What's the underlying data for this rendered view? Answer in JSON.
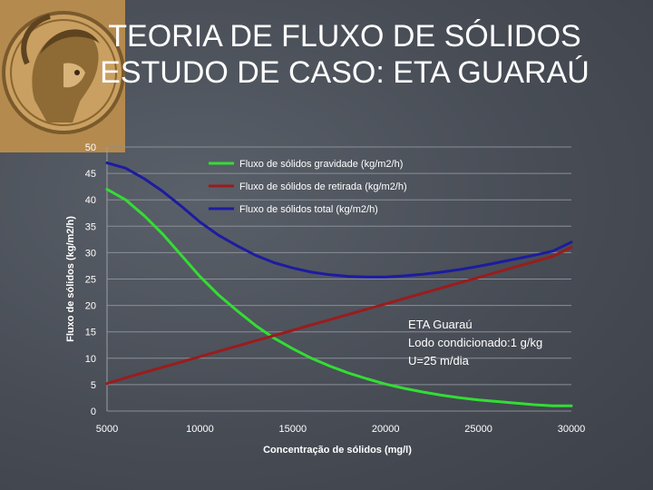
{
  "slide": {
    "title_line1": "TEORIA DE FLUXO DE SÓLIDOS",
    "title_line2": "ESTUDO DE CASO: ETA GUARAÚ"
  },
  "chart_data": {
    "type": "line",
    "title": "",
    "xlabel": "Concentração de sólidos (mg/l)",
    "ylabel": "Fluxo de sólidos (kg/m2/h)",
    "xlim": [
      5000,
      30000
    ],
    "ylim": [
      0,
      50
    ],
    "xticks": [
      5000,
      10000,
      15000,
      20000,
      25000,
      30000
    ],
    "yticks": [
      0,
      5,
      10,
      15,
      20,
      25,
      30,
      35,
      40,
      45,
      50
    ],
    "grid": true,
    "legend_position": "top-center",
    "x": [
      5000,
      6000,
      7000,
      8000,
      9000,
      10000,
      11000,
      12000,
      13000,
      14000,
      15000,
      16000,
      17000,
      18000,
      19000,
      20000,
      21000,
      22000,
      23000,
      24000,
      25000,
      26000,
      27000,
      28000,
      29000,
      30000
    ],
    "series": [
      {
        "name": "Fluxo de sólidos gravidade (kg/m2/h)",
        "color": "#33dd33",
        "values": [
          42,
          40,
          37,
          33.5,
          29.5,
          25.5,
          22,
          19,
          16.2,
          13.8,
          11.8,
          10,
          8.5,
          7.2,
          6.1,
          5.1,
          4.3,
          3.6,
          3.0,
          2.5,
          2.1,
          1.8,
          1.5,
          1.2,
          1.0,
          1.0
        ]
      },
      {
        "name": "Fluxo de sólidos de retirada (kg/m2/h)",
        "color": "#9b1c1c",
        "values": [
          5.2,
          6.3,
          7.3,
          8.3,
          9.3,
          10.3,
          11.3,
          12.3,
          13.3,
          14.3,
          15.3,
          16.3,
          17.3,
          18.3,
          19.3,
          20.3,
          21.3,
          22.3,
          23.3,
          24.3,
          25.3,
          26.3,
          27.3,
          28.3,
          29.3,
          31
        ]
      },
      {
        "name": "Fluxo de sólidos total (kg/m2/h)",
        "color": "#1c1ca0",
        "values": [
          47,
          46,
          44,
          41.6,
          38.8,
          35.8,
          33.3,
          31.3,
          29.5,
          28.1,
          27.1,
          26.3,
          25.8,
          25.5,
          25.4,
          25.4,
          25.6,
          25.9,
          26.3,
          26.8,
          27.4,
          28.1,
          28.8,
          29.5,
          30.3,
          32
        ]
      }
    ],
    "annotations": [
      "ETA Guaraú",
      "Lodo condicionado:1 g/kg",
      "U=25 m/dia"
    ]
  }
}
